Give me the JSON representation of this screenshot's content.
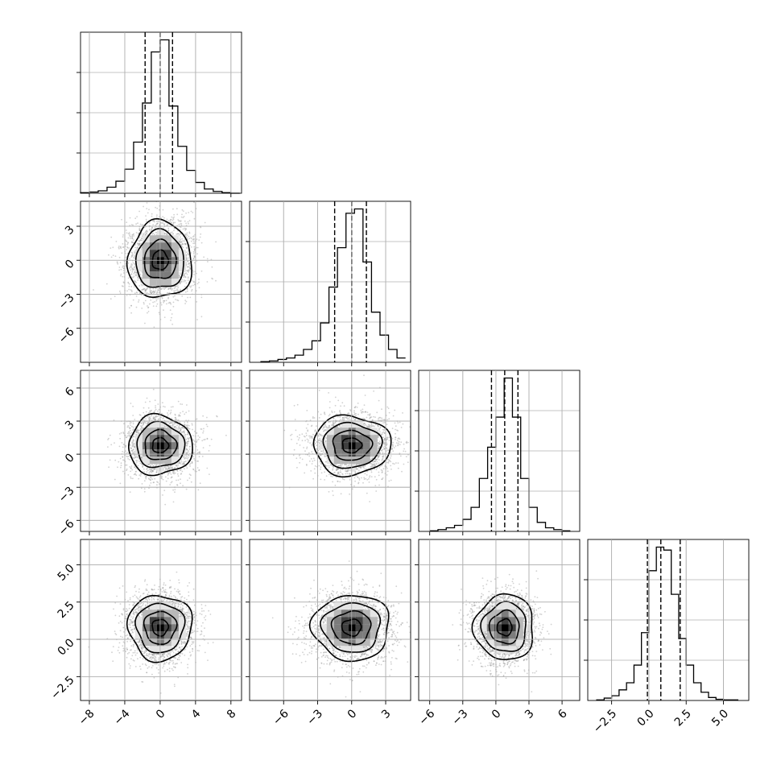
{
  "chart_data": {
    "type": "corner",
    "params": [
      {
        "name": "",
        "range": [
          -9,
          9.2
        ],
        "ticks": [
          -8,
          -4,
          0,
          4,
          8
        ],
        "tick_labels": [
          "−8",
          "−4",
          "0",
          "4",
          "8"
        ],
        "quantiles": [
          -1.7,
          0.0,
          1.4
        ],
        "hist_bins": [
          -9.0,
          -8.0,
          -7.0,
          -6.0,
          -5.0,
          -4.0,
          -3.0,
          -2.0,
          -1.0,
          0.0,
          1.0,
          2.0,
          3.0,
          4.0,
          5.0,
          6.0,
          7.0,
          8.0,
          9.0
        ],
        "hist_counts": [
          1,
          2,
          4,
          10,
          20,
          40,
          85,
          150,
          235,
          255,
          145,
          78,
          38,
          18,
          7,
          3,
          1,
          0
        ]
      },
      {
        "name": "",
        "range": [
          -9,
          5.2
        ],
        "ticks": [
          -6,
          -3,
          0,
          3
        ],
        "tick_labels": [
          "−6",
          "−3",
          "0",
          "3"
        ],
        "quantiles": [
          -1.5,
          0.0,
          1.3
        ],
        "hist_bins": [
          -8.0,
          -7.25,
          -6.5,
          -5.75,
          -5.0,
          -4.25,
          -3.5,
          -2.75,
          -2.0,
          -1.25,
          -0.5,
          0.25,
          1.0,
          1.75,
          2.5,
          3.25,
          4.0,
          4.75
        ],
        "hist_counts": [
          1,
          2,
          4,
          6,
          10,
          18,
          30,
          55,
          105,
          160,
          208,
          214,
          140,
          70,
          38,
          18,
          6
        ]
      },
      {
        "name": "",
        "range": [
          -7,
          7.6
        ],
        "ticks": [
          -6,
          -3,
          0,
          3,
          6
        ],
        "tick_labels": [
          "−6",
          "−3",
          "0",
          "3",
          "6"
        ],
        "quantiles": [
          -0.4,
          0.8,
          2.0
        ],
        "hist_bins": [
          -6.0,
          -5.25,
          -4.5,
          -3.75,
          -3.0,
          -2.25,
          -1.5,
          -0.75,
          0.0,
          0.75,
          1.5,
          2.25,
          3.0,
          3.75,
          4.5,
          5.25,
          6.0,
          6.75
        ],
        "hist_counts": [
          1,
          3,
          6,
          10,
          20,
          40,
          88,
          140,
          190,
          255,
          190,
          88,
          40,
          15,
          6,
          3,
          1
        ]
      },
      {
        "name": "",
        "range": [
          -4.1,
          6.7
        ],
        "ticks": [
          -2.5,
          0.0,
          2.5,
          5.0
        ],
        "tick_labels": [
          "−2.5",
          "0.0",
          "2.5",
          "5.0"
        ],
        "quantiles": [
          -0.1,
          0.8,
          2.1
        ],
        "hist_bins": [
          -3.5,
          -3.0,
          -2.5,
          -2.0,
          -1.5,
          -1.0,
          -0.5,
          0.0,
          0.5,
          1.0,
          1.5,
          2.0,
          2.5,
          3.0,
          3.5,
          4.0,
          4.5,
          5.0,
          5.5,
          6.0
        ],
        "hist_counts": [
          1,
          4,
          8,
          18,
          30,
          60,
          115,
          220,
          260,
          255,
          180,
          105,
          60,
          30,
          14,
          5,
          2,
          1,
          1
        ]
      }
    ],
    "pairs": [
      {
        "row": 1,
        "col": 0,
        "mean": [
          0.0,
          0.0
        ],
        "sd": [
          1.8,
          1.7
        ]
      },
      {
        "row": 2,
        "col": 0,
        "mean": [
          0.0,
          0.8
        ],
        "sd": [
          1.8,
          1.35
        ]
      },
      {
        "row": 2,
        "col": 1,
        "mean": [
          0.0,
          0.8
        ],
        "sd": [
          1.7,
          1.35
        ]
      },
      {
        "row": 3,
        "col": 0,
        "mean": [
          0.0,
          0.8
        ],
        "sd": [
          1.8,
          1.1
        ]
      },
      {
        "row": 3,
        "col": 1,
        "mean": [
          0.0,
          0.8
        ],
        "sd": [
          1.7,
          1.1
        ]
      },
      {
        "row": 3,
        "col": 2,
        "mean": [
          0.8,
          0.8
        ],
        "sd": [
          1.35,
          1.1
        ]
      }
    ],
    "contour_levels_sigma": [
      0.5,
      1.0,
      1.5,
      2.0
    ],
    "grid": true,
    "scatter_points_per_panel": 2500
  }
}
